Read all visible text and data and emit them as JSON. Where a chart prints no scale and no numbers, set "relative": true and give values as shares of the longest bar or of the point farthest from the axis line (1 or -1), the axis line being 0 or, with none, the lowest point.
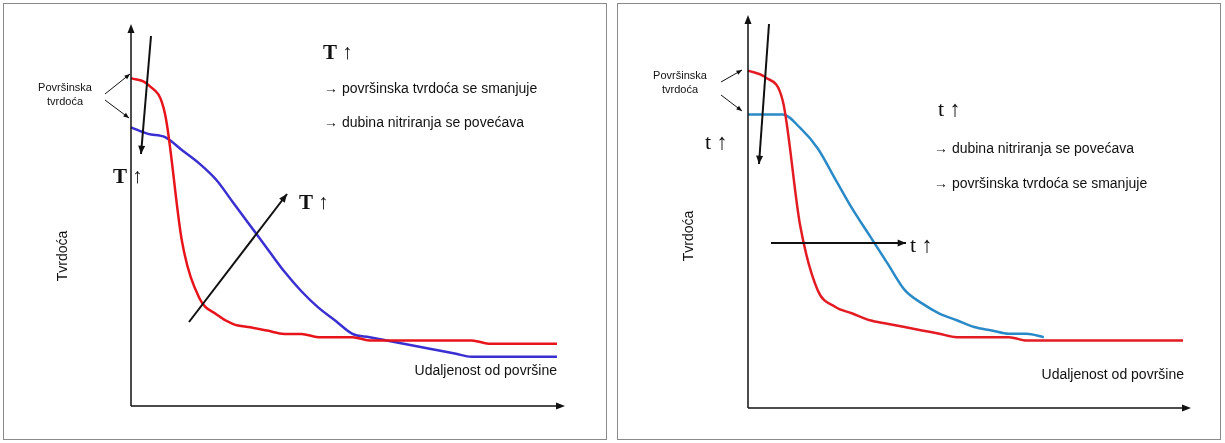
{
  "chart_data": [
    {
      "type": "line",
      "relative": true,
      "xlabel": "Udaljenost od površine",
      "ylabel": "Tvrdoća",
      "annotations": [
        "Površinska tvrdoća",
        "T ↑",
        "T ↑",
        "T ↑",
        "→ površinska tvrdoća se smanjuje",
        "→ dubina nitriranja se povećava"
      ],
      "categories": [
        null,
        null,
        null,
        null,
        null,
        null,
        null,
        null,
        null,
        null,
        null,
        null,
        null,
        null,
        null,
        null,
        null,
        null,
        null,
        null,
        null,
        null,
        null,
        null,
        null,
        null
      ],
      "series": [
        {
          "color": "#e8141c",
          "values": [
            1.0,
            0.98,
            0.89,
            0.5,
            0.33,
            0.28,
            0.25,
            0.24,
            0.23,
            0.22,
            0.22,
            0.21,
            0.21,
            0.21,
            0.2,
            0.2,
            0.2,
            0.2,
            0.2,
            0.2,
            0.2,
            0.19,
            0.19,
            0.19,
            0.19,
            0.19
          ]
        },
        {
          "color": "#3a2fd0",
          "values": [
            0.85,
            0.83,
            0.82,
            0.78,
            0.74,
            0.69,
            0.62,
            0.55,
            0.48,
            0.41,
            0.35,
            0.3,
            0.26,
            0.22,
            0.21,
            0.2,
            0.19,
            0.18,
            0.17,
            0.16,
            0.15,
            0.15,
            0.15,
            0.15,
            0.15,
            0.15
          ]
        }
      ]
    },
    {
      "type": "line",
      "relative": true,
      "xlabel": "Udaljenost od površine",
      "ylabel": "Tvrdoća",
      "annotations": [
        "Površinska tvrdoća",
        "t ↑",
        "t ↑",
        "→ dubina nitriranja se povećava",
        "→ površinska tvrdoća se smanjuje",
        "t ↑"
      ],
      "categories": [
        null,
        null,
        null,
        null,
        null,
        null,
        null,
        null,
        null,
        null,
        null,
        null,
        null,
        null,
        null,
        null,
        null,
        null,
        null,
        null,
        null,
        null,
        null,
        null,
        null,
        null
      ],
      "series": [
        {
          "color": "#e31b23",
          "values": [
            1.0,
            0.98,
            0.91,
            0.54,
            0.35,
            0.3,
            0.28,
            0.26,
            0.25,
            0.24,
            0.23,
            0.22,
            0.21,
            0.21,
            0.21,
            0.21,
            0.2,
            0.2,
            0.2,
            0.2,
            0.2,
            0.2,
            0.2,
            0.2,
            0.2,
            0.2
          ]
        },
        {
          "color": "#2a8ac8",
          "values": [
            0.87,
            0.87,
            0.87,
            0.83,
            0.77,
            0.68,
            0.59,
            0.51,
            0.43,
            0.35,
            0.31,
            0.28,
            0.26,
            0.24,
            0.23,
            0.22,
            0.22,
            0.21,
            null,
            null,
            null,
            null,
            null,
            null,
            null,
            null
          ]
        }
      ]
    }
  ]
}
